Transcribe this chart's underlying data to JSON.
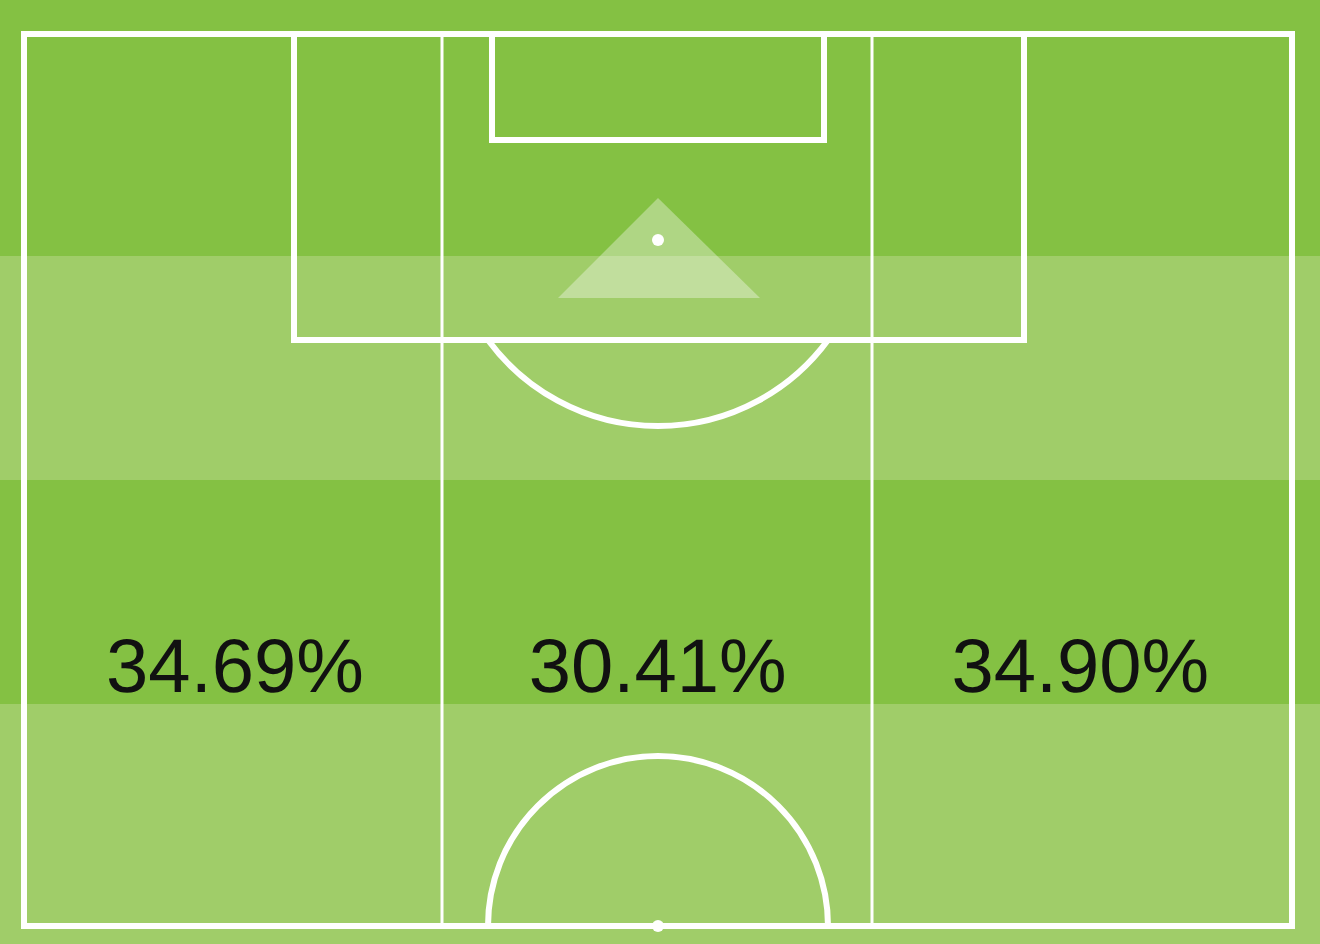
{
  "chart_data": {
    "type": "other",
    "categories": [
      null,
      null,
      null
    ],
    "values": [
      34.69,
      30.41,
      34.9
    ],
    "value_labels": [
      "34.69%",
      "30.41%",
      "34.90%"
    ]
  }
}
